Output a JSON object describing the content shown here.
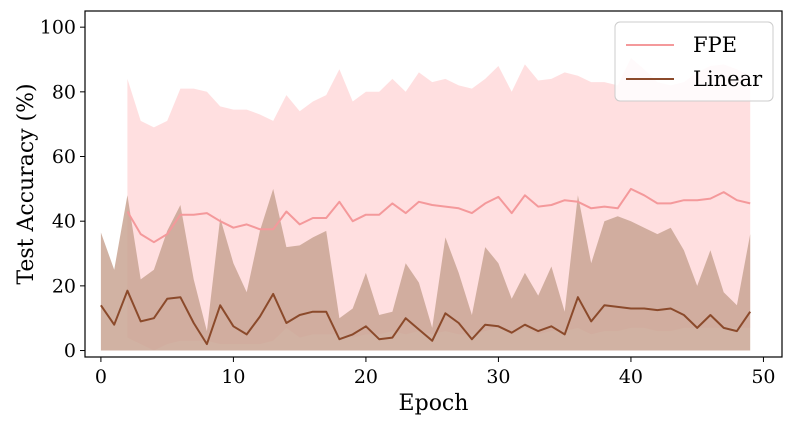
{
  "chart_data": {
    "type": "line",
    "title": "",
    "xlabel": "Epoch",
    "ylabel": "Test Accuracy (%)",
    "xlim": [
      -1.2,
      51.4
    ],
    "ylim": [
      -2,
      105
    ],
    "xticks": [
      0,
      10,
      20,
      30,
      40,
      50
    ],
    "yticks": [
      0,
      20,
      40,
      60,
      80,
      100
    ],
    "grid": false,
    "legend_position": "top-right",
    "series": [
      {
        "name": "FPE",
        "color": "#f4999b",
        "band_color": "#ffd9da",
        "x": [
          2,
          3,
          4,
          5,
          6,
          7,
          8,
          9,
          10,
          11,
          12,
          13,
          14,
          15,
          16,
          17,
          18,
          19,
          20,
          21,
          22,
          23,
          24,
          25,
          26,
          27,
          28,
          29,
          30,
          31,
          32,
          33,
          34,
          35,
          36,
          37,
          38,
          39,
          40,
          41,
          42,
          43,
          44,
          45,
          46,
          47,
          48,
          49
        ],
        "values": [
          43,
          36,
          33.5,
          36,
          42,
          42,
          42.5,
          40,
          38,
          39,
          37.5,
          37.5,
          43,
          39,
          41,
          41,
          46,
          40,
          42,
          42,
          45.5,
          42.5,
          46,
          45,
          44.5,
          44,
          42.5,
          45.5,
          47.5,
          42.5,
          48,
          44.5,
          45,
          46.5,
          46,
          44,
          44.5,
          44,
          50,
          48,
          45.5,
          45.5,
          46.5,
          46.5,
          47,
          49,
          46.5,
          45.5
        ],
        "band_upper": [
          84,
          71,
          69,
          71,
          81,
          81,
          80,
          75.5,
          74.5,
          74.5,
          73,
          71,
          79,
          74,
          77,
          79,
          87,
          77,
          80,
          80,
          84,
          80,
          86,
          83,
          84,
          82,
          81,
          84,
          88,
          80,
          88.5,
          83.5,
          84,
          86,
          85,
          83,
          83,
          82,
          90.5,
          87,
          83,
          82,
          83,
          86,
          88,
          88.5,
          87,
          85
        ],
        "band_lower": [
          4,
          2,
          0,
          2,
          3,
          3,
          3,
          2,
          2,
          2,
          2,
          3,
          7,
          4,
          5,
          5,
          5,
          4,
          5,
          5,
          6,
          5,
          6,
          5,
          6,
          5,
          5,
          6,
          7,
          5,
          7,
          5,
          6,
          6,
          7,
          5,
          6,
          6,
          7,
          7,
          6,
          6,
          7,
          7,
          7,
          7,
          7,
          7
        ]
      },
      {
        "name": "Linear",
        "color": "#8b4a2b",
        "band_color": "#c9a593",
        "x": [
          0,
          1,
          2,
          3,
          4,
          5,
          6,
          7,
          8,
          9,
          10,
          11,
          12,
          13,
          14,
          15,
          16,
          17,
          18,
          19,
          20,
          21,
          22,
          23,
          24,
          25,
          26,
          27,
          28,
          29,
          30,
          31,
          32,
          33,
          34,
          35,
          36,
          37,
          38,
          39,
          40,
          41,
          42,
          43,
          44,
          45,
          46,
          47,
          48,
          49
        ],
        "values": [
          14,
          8,
          18.5,
          9,
          10,
          16,
          16.5,
          8.5,
          2,
          14,
          7.5,
          5,
          10.5,
          17.5,
          8.5,
          11,
          12,
          12,
          3.5,
          5,
          7.5,
          3.5,
          4,
          10,
          6.5,
          3,
          11.5,
          8.5,
          3.5,
          8,
          7.5,
          5.5,
          8,
          6,
          7.5,
          5,
          16.5,
          9,
          14,
          13.5,
          13,
          13,
          12.5,
          13,
          11,
          7,
          11,
          7,
          6,
          12
        ],
        "band_upper": [
          36.5,
          25,
          48,
          22,
          25,
          37,
          45,
          22,
          6,
          41,
          27,
          18,
          37,
          50,
          32,
          32.5,
          35,
          37,
          10,
          13,
          24,
          11,
          12,
          27,
          21,
          7,
          35,
          24,
          11,
          32,
          27,
          16,
          24,
          17,
          26,
          12,
          48,
          27,
          40,
          41.5,
          40,
          38,
          36,
          38,
          31,
          20,
          31,
          18,
          14,
          36
        ],
        "band_lower": [
          0,
          0,
          0,
          0,
          0,
          0,
          0,
          0,
          0,
          0,
          0,
          0,
          0,
          0,
          0,
          0,
          0,
          0,
          0,
          0,
          0,
          0,
          0,
          0,
          0,
          0,
          0,
          0,
          0,
          0,
          0,
          0,
          0,
          0,
          0,
          0,
          0,
          0,
          0,
          0,
          0,
          0,
          0,
          0,
          0,
          0,
          0,
          0,
          0,
          0
        ]
      }
    ]
  }
}
